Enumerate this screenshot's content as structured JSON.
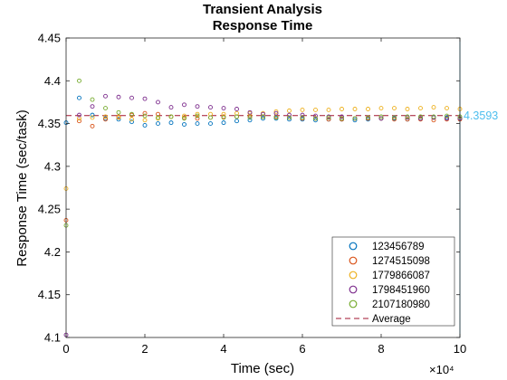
{
  "colors": {
    "s1": "#0072BD",
    "s2": "#D95319",
    "s3": "#EDB120",
    "s4": "#7E2F8E",
    "s5": "#77AC30",
    "average": "#A2142F",
    "annotation": "#4DBEEE"
  },
  "chart_data": {
    "type": "scatter",
    "title": [
      "Transient Analysis",
      "Response Time"
    ],
    "xlabel": "Time (sec)",
    "ylabel": "Response Time (sec/task)",
    "xlim": [
      0,
      100000
    ],
    "ylim": [
      4.1,
      4.45
    ],
    "x_ticks": [
      0,
      20000,
      40000,
      60000,
      80000,
      100000
    ],
    "x_tick_labels": [
      "0",
      "2",
      "4",
      "6",
      "8",
      "10"
    ],
    "x_exponent_label": "×10⁴",
    "y_ticks": [
      4.1,
      4.15,
      4.2,
      4.25,
      4.3,
      4.35,
      4.4,
      4.45
    ],
    "y_tick_labels": [
      "4.1",
      "4.15",
      "4.2",
      "4.25",
      "4.3",
      "4.35",
      "4.4",
      "4.45"
    ],
    "grid": false,
    "legend_position": "bottom-right",
    "x": [
      0,
      3333,
      6667,
      10000,
      13333,
      16667,
      20000,
      23333,
      26667,
      30000,
      33333,
      36667,
      40000,
      43333,
      46667,
      50000,
      53333,
      56667,
      60000,
      63333,
      66667,
      70000,
      73333,
      76667,
      80000,
      83333,
      86667,
      90000,
      93333,
      96667,
      100000
    ],
    "series": [
      {
        "name": "123456789",
        "values": [
          4.351,
          4.38,
          4.36,
          4.356,
          4.355,
          4.352,
          4.348,
          4.35,
          4.351,
          4.349,
          4.35,
          4.35,
          4.351,
          4.353,
          4.354,
          4.356,
          4.356,
          4.355,
          4.355,
          4.354,
          4.355,
          4.355,
          4.354,
          4.355,
          4.356,
          4.356,
          4.355,
          4.356,
          4.357,
          4.357,
          4.356
        ]
      },
      {
        "name": "1274515098",
        "values": [
          4.237,
          4.353,
          4.347,
          4.355,
          4.358,
          4.36,
          4.362,
          4.361,
          4.358,
          4.357,
          4.356,
          4.357,
          4.358,
          4.358,
          4.359,
          4.358,
          4.358,
          4.357,
          4.356,
          4.356,
          4.355,
          4.355,
          4.356,
          4.356,
          4.356,
          4.355,
          4.355,
          4.355,
          4.354,
          4.355,
          4.355
        ]
      },
      {
        "name": "1779866087",
        "values": [
          4.274,
          4.356,
          4.357,
          4.358,
          4.357,
          4.355,
          4.354,
          4.356,
          4.358,
          4.359,
          4.361,
          4.361,
          4.361,
          4.362,
          4.362,
          4.362,
          4.364,
          4.365,
          4.366,
          4.366,
          4.366,
          4.367,
          4.367,
          4.367,
          4.368,
          4.368,
          4.367,
          4.368,
          4.369,
          4.368,
          4.367
        ]
      },
      {
        "name": "1798451960",
        "values": [
          4.103,
          4.36,
          4.37,
          4.382,
          4.381,
          4.38,
          4.379,
          4.375,
          4.369,
          4.372,
          4.37,
          4.369,
          4.368,
          4.367,
          4.363,
          4.361,
          4.362,
          4.36,
          4.36,
          4.359,
          4.358,
          4.358,
          4.356,
          4.357,
          4.356,
          4.357,
          4.357,
          4.356,
          4.357,
          4.356,
          4.356
        ]
      },
      {
        "name": "2107180980",
        "values": [
          4.231,
          4.4,
          4.378,
          4.368,
          4.363,
          4.361,
          4.359,
          4.357,
          4.358,
          4.356,
          4.359,
          4.357,
          4.357,
          4.358,
          4.357,
          4.358,
          4.357,
          4.357,
          4.357,
          4.356,
          4.357,
          4.356,
          4.356,
          4.357,
          4.358,
          4.357,
          4.358,
          4.358,
          4.358,
          4.359,
          4.358
        ]
      }
    ],
    "average": {
      "name": "Average",
      "value": 4.3593
    },
    "annotation": "4.3593"
  }
}
